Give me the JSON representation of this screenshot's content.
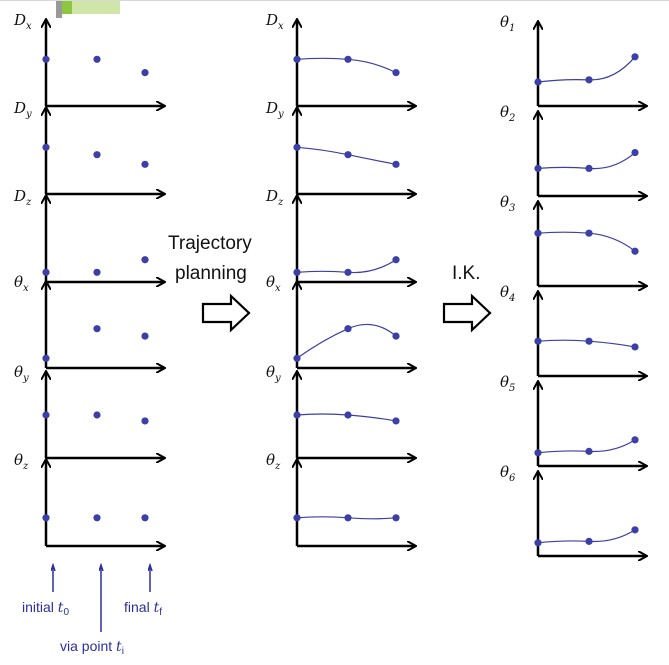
{
  "colors": {
    "axis": "#000000",
    "point": "#3b3fa6",
    "curve": "#3b3fa6",
    "annotation": "#2b2fa0",
    "corner_accent": "#8dc63f"
  },
  "left_panel": {
    "plots": [
      {
        "label": "D",
        "sub": "x",
        "values": [
          0.55,
          0.55,
          0.37
        ]
      },
      {
        "label": "D",
        "sub": "y",
        "values": [
          0.55,
          0.45,
          0.32
        ]
      },
      {
        "label": "D",
        "sub": "z",
        "values": [
          0.05,
          0.05,
          0.22
        ]
      },
      {
        "label": "θ",
        "sub": "x",
        "values": [
          0.05,
          0.45,
          0.35
        ]
      },
      {
        "label": "θ",
        "sub": "y",
        "values": [
          0.5,
          0.5,
          0.42
        ]
      },
      {
        "label": "θ",
        "sub": "z",
        "values": [
          0.3,
          0.3,
          0.3
        ]
      }
    ]
  },
  "middle_panel": {
    "plots": [
      {
        "label": "D",
        "sub": "x",
        "values": [
          0.55,
          0.55,
          0.37
        ]
      },
      {
        "label": "D",
        "sub": "y",
        "values": [
          0.55,
          0.45,
          0.32
        ]
      },
      {
        "label": "D",
        "sub": "z",
        "values": [
          0.05,
          0.05,
          0.22
        ]
      },
      {
        "label": "θ",
        "sub": "x",
        "values": [
          0.05,
          0.45,
          0.35
        ]
      },
      {
        "label": "θ",
        "sub": "y",
        "values": [
          0.5,
          0.5,
          0.42
        ]
      },
      {
        "label": "θ",
        "sub": "z",
        "values": [
          0.3,
          0.3,
          0.3
        ]
      }
    ]
  },
  "right_panel": {
    "plots": [
      {
        "label": "θ",
        "sub": "1",
        "values": [
          0.25,
          0.28,
          0.6
        ]
      },
      {
        "label": "θ",
        "sub": "2",
        "values": [
          0.3,
          0.3,
          0.52
        ]
      },
      {
        "label": "θ",
        "sub": "3",
        "values": [
          0.65,
          0.65,
          0.4
        ]
      },
      {
        "label": "θ",
        "sub": "4",
        "values": [
          0.4,
          0.4,
          0.32
        ]
      },
      {
        "label": "θ",
        "sub": "5",
        "values": [
          0.1,
          0.12,
          0.28
        ]
      },
      {
        "label": "θ",
        "sub": "6",
        "values": [
          0.1,
          0.12,
          0.28
        ]
      }
    ]
  },
  "arrow1_text": [
    "Trajectory",
    "planning"
  ],
  "arrow2_text": "I.K.",
  "annotations": {
    "initial": "initial",
    "initial_var": "t",
    "initial_sub": "0",
    "via": "via point",
    "via_var": "t",
    "via_sub": "i",
    "final": "final",
    "final_var": "t",
    "final_sub": "f"
  }
}
